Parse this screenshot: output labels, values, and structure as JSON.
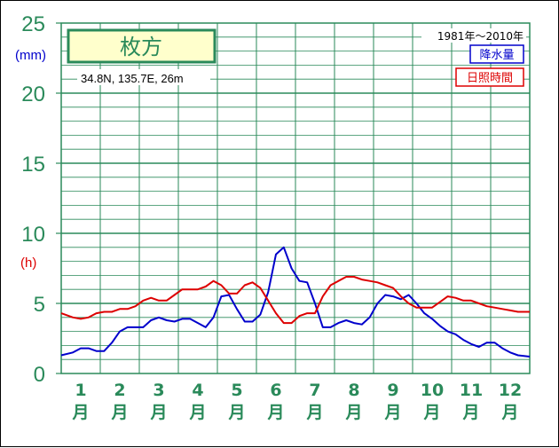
{
  "chart_data": {
    "type": "line",
    "title": "枚方",
    "subtitle": "34.8N,  135.7E,  26m",
    "period": "1981年〜2010年",
    "y_unit_precip": "(mm)",
    "y_unit_sun": "(h)",
    "ylim": [
      0,
      25
    ],
    "y_ticks": [
      "0",
      "5",
      "10",
      "15",
      "20",
      "25"
    ],
    "x_range": [
      0.5,
      12.5
    ],
    "grid": true,
    "months": [
      {
        "num": "1",
        "suffix": "月"
      },
      {
        "num": "2",
        "suffix": "月"
      },
      {
        "num": "3",
        "suffix": "月"
      },
      {
        "num": "4",
        "suffix": "月"
      },
      {
        "num": "5",
        "suffix": "月"
      },
      {
        "num": "6",
        "suffix": "月"
      },
      {
        "num": "7",
        "suffix": "月"
      },
      {
        "num": "8",
        "suffix": "月"
      },
      {
        "num": "9",
        "suffix": "月"
      },
      {
        "num": "10",
        "suffix": "月"
      },
      {
        "num": "11",
        "suffix": "月"
      },
      {
        "num": "12",
        "suffix": "月"
      }
    ],
    "series": [
      {
        "name": "降水量",
        "color": "#0000cc",
        "x": [
          0.5,
          0.8,
          1.0,
          1.2,
          1.4,
          1.6,
          1.8,
          2.0,
          2.2,
          2.4,
          2.6,
          2.8,
          3.0,
          3.2,
          3.4,
          3.6,
          3.8,
          4.0,
          4.2,
          4.4,
          4.6,
          4.8,
          5.0,
          5.2,
          5.4,
          5.6,
          5.8,
          6.0,
          6.2,
          6.4,
          6.6,
          6.8,
          7.0,
          7.2,
          7.4,
          7.6,
          7.8,
          8.0,
          8.2,
          8.4,
          8.6,
          8.8,
          9.0,
          9.2,
          9.4,
          9.6,
          9.8,
          10.0,
          10.2,
          10.4,
          10.6,
          10.8,
          11.0,
          11.2,
          11.4,
          11.6,
          11.8,
          12.0,
          12.2,
          12.5
        ],
        "y": [
          1.3,
          1.5,
          1.8,
          1.8,
          1.6,
          1.6,
          2.2,
          3.0,
          3.3,
          3.3,
          3.3,
          3.8,
          4.0,
          3.8,
          3.7,
          3.9,
          3.9,
          3.6,
          3.3,
          4.0,
          5.5,
          5.6,
          4.6,
          3.7,
          3.7,
          4.2,
          5.8,
          8.5,
          9.0,
          7.5,
          6.6,
          6.5,
          5.0,
          3.3,
          3.3,
          3.6,
          3.8,
          3.6,
          3.5,
          4.0,
          5.0,
          5.6,
          5.5,
          5.3,
          5.6,
          5.0,
          4.3,
          3.9,
          3.4,
          3.0,
          2.8,
          2.4,
          2.1,
          1.9,
          2.2,
          2.2,
          1.8,
          1.5,
          1.3,
          1.2
        ]
      },
      {
        "name": "日照時間",
        "color": "#dd0000",
        "x": [
          0.5,
          0.8,
          1.0,
          1.2,
          1.4,
          1.6,
          1.8,
          2.0,
          2.2,
          2.4,
          2.6,
          2.8,
          3.0,
          3.2,
          3.4,
          3.6,
          3.8,
          4.0,
          4.2,
          4.4,
          4.6,
          4.8,
          5.0,
          5.2,
          5.4,
          5.6,
          5.8,
          6.0,
          6.2,
          6.4,
          6.6,
          6.8,
          7.0,
          7.2,
          7.4,
          7.6,
          7.8,
          8.0,
          8.2,
          8.4,
          8.6,
          8.8,
          9.0,
          9.2,
          9.4,
          9.6,
          9.8,
          10.0,
          10.2,
          10.4,
          10.6,
          10.8,
          11.0,
          11.2,
          11.4,
          11.6,
          11.8,
          12.0,
          12.2,
          12.5
        ],
        "y": [
          4.3,
          4.0,
          3.9,
          4.0,
          4.3,
          4.4,
          4.4,
          4.6,
          4.6,
          4.8,
          5.2,
          5.4,
          5.2,
          5.2,
          5.6,
          6.0,
          6.0,
          6.0,
          6.2,
          6.6,
          6.3,
          5.7,
          5.7,
          6.3,
          6.5,
          6.1,
          5.2,
          4.3,
          3.6,
          3.6,
          4.1,
          4.3,
          4.3,
          5.5,
          6.3,
          6.6,
          6.9,
          6.9,
          6.7,
          6.6,
          6.5,
          6.3,
          6.1,
          5.5,
          5.0,
          4.7,
          4.7,
          4.7,
          5.1,
          5.5,
          5.4,
          5.2,
          5.2,
          5.0,
          4.8,
          4.7,
          4.6,
          4.5,
          4.4,
          4.4
        ]
      }
    ]
  }
}
